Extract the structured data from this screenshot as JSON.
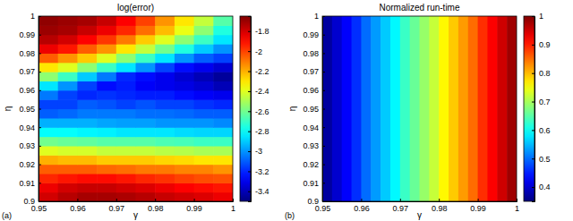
{
  "chart_data": [
    {
      "type": "heatmap",
      "title": "log(error)",
      "x_label": "γ",
      "y_label": "η",
      "annotations": [
        "(a)"
      ],
      "x": [
        0.9525,
        0.9575,
        0.9625,
        0.9675,
        0.9725,
        0.9775,
        0.9825,
        0.9875,
        0.9925,
        0.9975
      ],
      "y": [
        0.9025,
        0.9075,
        0.9125,
        0.9175,
        0.9225,
        0.9275,
        0.9325,
        0.9375,
        0.9425,
        0.9475,
        0.9525,
        0.9575,
        0.9625,
        0.9675,
        0.9725,
        0.9775,
        0.9825,
        0.9875,
        0.9925,
        0.9975
      ],
      "values": [
        [
          -1.8,
          -1.75,
          -1.72,
          -1.72,
          -1.73,
          -1.75,
          -1.78,
          -1.8,
          -1.82,
          -1.85
        ],
        [
          -1.85,
          -1.8,
          -1.78,
          -1.78,
          -1.8,
          -1.82,
          -1.85,
          -1.88,
          -1.9,
          -1.92
        ],
        [
          -1.95,
          -1.92,
          -1.9,
          -1.9,
          -1.92,
          -1.95,
          -1.97,
          -2.0,
          -2.02,
          -2.03
        ],
        [
          -2.05,
          -2.05,
          -2.05,
          -2.07,
          -2.08,
          -2.1,
          -2.1,
          -2.12,
          -2.12,
          -2.15
        ],
        [
          -2.2,
          -2.22,
          -2.22,
          -2.25,
          -2.25,
          -2.25,
          -2.27,
          -2.28,
          -2.3,
          -2.3
        ],
        [
          -2.4,
          -2.42,
          -2.42,
          -2.45,
          -2.45,
          -2.45,
          -2.47,
          -2.48,
          -2.5,
          -2.5
        ],
        [
          -2.6,
          -2.62,
          -2.63,
          -2.65,
          -2.65,
          -2.65,
          -2.67,
          -2.68,
          -2.7,
          -2.7
        ],
        [
          -2.8,
          -2.8,
          -2.82,
          -2.83,
          -2.85,
          -2.85,
          -2.85,
          -2.87,
          -2.88,
          -2.88
        ],
        [
          -2.95,
          -2.95,
          -2.95,
          -2.97,
          -2.98,
          -2.98,
          -3.0,
          -3.0,
          -3.0,
          -3.02
        ],
        [
          -3.1,
          -3.08,
          -3.05,
          -3.05,
          -3.05,
          -3.07,
          -3.07,
          -3.08,
          -3.1,
          -3.1
        ],
        [
          -3.15,
          -3.15,
          -3.1,
          -3.12,
          -3.15,
          -3.12,
          -3.15,
          -3.15,
          -3.18,
          -3.2
        ],
        [
          -3.05,
          -3.15,
          -3.2,
          -3.18,
          -3.2,
          -3.22,
          -3.22,
          -3.25,
          -3.28,
          -3.3
        ],
        [
          -2.85,
          -3.0,
          -3.15,
          -3.25,
          -3.22,
          -3.28,
          -3.3,
          -3.32,
          -3.35,
          -3.4
        ],
        [
          -2.55,
          -2.7,
          -2.9,
          -3.05,
          -3.2,
          -3.25,
          -3.3,
          -3.35,
          -3.4,
          -3.45
        ],
        [
          -2.3,
          -2.4,
          -2.55,
          -2.7,
          -2.85,
          -3.0,
          -3.15,
          -3.25,
          -3.3,
          -3.35
        ],
        [
          -2.05,
          -2.15,
          -2.25,
          -2.4,
          -2.55,
          -2.7,
          -2.85,
          -3.0,
          -3.1,
          -3.15
        ],
        [
          -1.85,
          -1.92,
          -2.05,
          -2.15,
          -2.3,
          -2.45,
          -2.6,
          -2.75,
          -2.9,
          -3.0
        ],
        [
          -1.75,
          -1.8,
          -1.88,
          -1.98,
          -2.1,
          -2.25,
          -2.4,
          -2.55,
          -2.7,
          -2.85
        ],
        [
          -1.7,
          -1.72,
          -1.78,
          -1.85,
          -1.95,
          -2.08,
          -2.22,
          -2.38,
          -2.55,
          -2.75
        ],
        [
          -1.68,
          -1.7,
          -1.72,
          -1.78,
          -1.88,
          -2.0,
          -2.15,
          -2.3,
          -2.45,
          -2.65
        ]
      ],
      "xlim": [
        0.95,
        1
      ],
      "ylim": [
        0.9,
        1
      ],
      "xticks": [
        0.95,
        0.96,
        0.97,
        0.98,
        0.99,
        1
      ],
      "yticks": [
        0.9,
        0.91,
        0.92,
        0.93,
        0.94,
        0.95,
        0.96,
        0.97,
        0.98,
        0.99,
        1
      ],
      "colorbar": {
        "range": [
          -3.5,
          -1.65
        ],
        "ticks": [
          -3.4,
          -3.2,
          -3,
          -2.8,
          -2.6,
          -2.4,
          -2.2,
          -2,
          -1.8
        ]
      }
    },
    {
      "type": "heatmap",
      "title": "Normalized run-time",
      "x_label": "γ",
      "y_label": "η",
      "annotations": [
        "(b)"
      ],
      "x": [
        0.95125,
        0.95375,
        0.95625,
        0.95875,
        0.96125,
        0.96375,
        0.96625,
        0.96875,
        0.97125,
        0.97375,
        0.97625,
        0.97875,
        0.98125,
        0.98375,
        0.98625,
        0.98875,
        0.99125,
        0.99375,
        0.99625,
        0.99875
      ],
      "y": [
        0.95
      ],
      "values": [
        [
          0.37,
          0.4,
          0.43,
          0.46,
          0.5,
          0.53,
          0.56,
          0.59,
          0.63,
          0.66,
          0.69,
          0.72,
          0.76,
          0.79,
          0.82,
          0.85,
          0.89,
          0.92,
          0.95,
          0.98
        ]
      ],
      "xlim": [
        0.95,
        1
      ],
      "ylim": [
        0.9,
        1
      ],
      "xticks": [
        0.95,
        0.96,
        0.97,
        0.98,
        0.99,
        1
      ],
      "yticks": [
        0.9,
        0.91,
        0.92,
        0.93,
        0.94,
        0.95,
        0.96,
        0.97,
        0.98,
        0.99,
        1
      ],
      "colorbar": {
        "range": [
          0.35,
          1
        ],
        "ticks": [
          0.4,
          0.5,
          0.6,
          0.7,
          0.8,
          0.9,
          1
        ]
      }
    }
  ]
}
